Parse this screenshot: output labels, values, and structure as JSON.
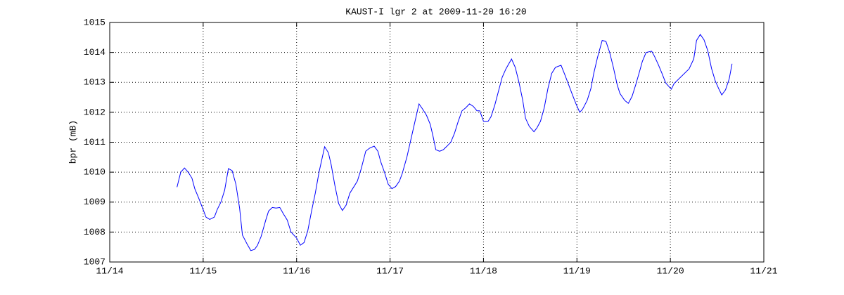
{
  "chart_data": {
    "type": "line",
    "title": "KAUST-I lgr 2 at 2009-11-20 16:20",
    "y_label": "bpr (mB)",
    "color": "#0000ff",
    "grid": true,
    "xlim": [
      14,
      21
    ],
    "xticks": [
      {
        "value": 14,
        "label": "11/14"
      },
      {
        "value": 15,
        "label": "11/15"
      },
      {
        "value": 16,
        "label": "11/16"
      },
      {
        "value": 17,
        "label": "11/17"
      },
      {
        "value": 18,
        "label": "11/18"
      },
      {
        "value": 19,
        "label": "11/19"
      },
      {
        "value": 20,
        "label": "11/20"
      },
      {
        "value": 21,
        "label": "11/21"
      }
    ],
    "ylim": [
      1007,
      1015
    ],
    "yticks": [
      1007,
      1008,
      1009,
      1010,
      1011,
      1012,
      1013,
      1014,
      1015
    ],
    "x": [
      14.72,
      14.76,
      14.8,
      14.84,
      14.88,
      14.91,
      14.95,
      15.0,
      15.03,
      15.07,
      15.12,
      15.15,
      15.19,
      15.23,
      15.27,
      15.31,
      15.35,
      15.39,
      15.42,
      15.47,
      15.51,
      15.55,
      15.58,
      15.62,
      15.67,
      15.7,
      15.74,
      15.78,
      15.82,
      15.86,
      15.9,
      15.94,
      16.0,
      16.04,
      16.08,
      16.12,
      16.16,
      16.2,
      16.24,
      16.3,
      16.34,
      16.37,
      16.41,
      16.45,
      16.49,
      16.53,
      16.57,
      16.61,
      16.65,
      16.69,
      16.74,
      16.78,
      16.83,
      16.87,
      16.9,
      16.94,
      16.98,
      17.02,
      17.06,
      17.1,
      17.13,
      17.18,
      17.22,
      17.26,
      17.31,
      17.35,
      17.39,
      17.43,
      17.46,
      17.49,
      17.53,
      17.57,
      17.61,
      17.65,
      17.69,
      17.73,
      17.77,
      17.81,
      17.85,
      17.89,
      17.93,
      17.96,
      18.0,
      18.05,
      18.08,
      18.12,
      18.16,
      18.2,
      18.24,
      18.3,
      18.34,
      18.38,
      18.42,
      18.45,
      18.49,
      18.54,
      18.57,
      18.61,
      18.65,
      18.69,
      18.73,
      18.77,
      18.83,
      18.87,
      18.91,
      18.95,
      18.99,
      19.03,
      19.06,
      19.11,
      19.15,
      19.18,
      19.22,
      19.27,
      19.31,
      19.35,
      19.39,
      19.43,
      19.46,
      19.51,
      19.55,
      19.59,
      19.63,
      19.67,
      19.7,
      19.74,
      19.8,
      19.83,
      19.87,
      19.91,
      19.95,
      20.01,
      20.04,
      20.2,
      20.25,
      20.28,
      20.32,
      20.36,
      20.4,
      20.44,
      20.48,
      20.52,
      20.55,
      20.59,
      20.63,
      20.66
    ],
    "values": [
      1009.5,
      1010.0,
      1010.14,
      1010.0,
      1009.8,
      1009.45,
      1009.15,
      1008.75,
      1008.5,
      1008.42,
      1008.5,
      1008.75,
      1009.0,
      1009.4,
      1010.12,
      1010.05,
      1009.6,
      1008.8,
      1007.9,
      1007.6,
      1007.38,
      1007.42,
      1007.55,
      1007.85,
      1008.4,
      1008.7,
      1008.82,
      1008.8,
      1008.82,
      1008.6,
      1008.4,
      1008.0,
      1007.8,
      1007.56,
      1007.65,
      1008.05,
      1008.7,
      1009.3,
      1010.0,
      1010.85,
      1010.65,
      1010.25,
      1009.55,
      1008.95,
      1008.72,
      1008.9,
      1009.3,
      1009.5,
      1009.7,
      1010.1,
      1010.7,
      1010.8,
      1010.87,
      1010.7,
      1010.35,
      1010.0,
      1009.6,
      1009.45,
      1009.52,
      1009.7,
      1009.95,
      1010.5,
      1011.05,
      1011.6,
      1012.28,
      1012.1,
      1011.9,
      1011.6,
      1011.2,
      1010.75,
      1010.7,
      1010.75,
      1010.87,
      1011.0,
      1011.3,
      1011.7,
      1012.05,
      1012.15,
      1012.28,
      1012.2,
      1012.05,
      1012.05,
      1011.7,
      1011.7,
      1011.85,
      1012.23,
      1012.7,
      1013.17,
      1013.45,
      1013.78,
      1013.5,
      1013.0,
      1012.4,
      1011.8,
      1011.53,
      1011.35,
      1011.47,
      1011.7,
      1012.15,
      1012.8,
      1013.3,
      1013.5,
      1013.57,
      1013.26,
      1012.93,
      1012.6,
      1012.28,
      1012.0,
      1012.1,
      1012.4,
      1012.8,
      1013.3,
      1013.83,
      1014.4,
      1014.37,
      1014.0,
      1013.5,
      1012.93,
      1012.63,
      1012.4,
      1012.3,
      1012.53,
      1012.93,
      1013.36,
      1013.7,
      1014.0,
      1014.04,
      1013.87,
      1013.6,
      1013.3,
      1012.98,
      1012.77,
      1012.96,
      1013.45,
      1013.78,
      1014.4,
      1014.6,
      1014.42,
      1014.06,
      1013.47,
      1013.05,
      1012.77,
      1012.58,
      1012.75,
      1013.12,
      1013.62
    ]
  }
}
